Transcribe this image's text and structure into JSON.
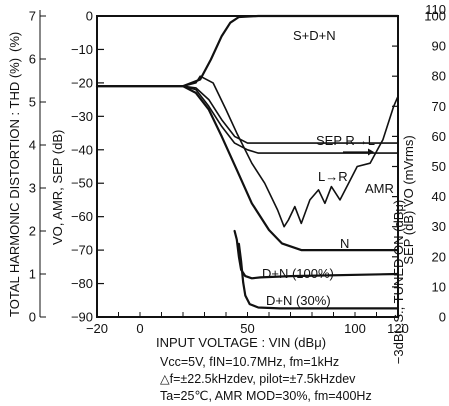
{
  "chart_data": {
    "type": "line",
    "xlabel": "INPUT VOLTAGE : VIN (dBμ)",
    "xlim": [
      -20,
      120
    ],
    "x_ticks": [
      "−20",
      "0",
      "50",
      "100",
      "120"
    ],
    "x_tick_values": [
      -20,
      0,
      50,
      100,
      120
    ],
    "ylabel_left_outer": "TOTAL HARMONIC DISTORTION : THD (%)",
    "ylim_left_outer": [
      0,
      7
    ],
    "y_ticks_left_outer": [
      "0",
      "1",
      "2",
      "3",
      "4",
      "5",
      "6",
      "7"
    ],
    "ylabel_left_inner": "VO, AMR, SEP (dB)",
    "ylim_left_inner": [
      -90,
      0
    ],
    "y_ticks_left_inner": [
      "0",
      "−10",
      "−20",
      "−30",
      "−40",
      "−50",
      "−60",
      "−70",
      "−80",
      "−90"
    ],
    "ylabel_right_inner": "SEP (dB) VO (mVrms)",
    "ylim_right_inner": [
      0,
      100
    ],
    "y_ticks_right_inner": [
      "0",
      "10",
      "20",
      "30",
      "40",
      "50",
      "60",
      "70",
      "80",
      "90",
      "100"
    ],
    "ylabel_right_outer": "−3dBL.S., TUNED ON (dBμ)",
    "ylim_right_outer": [
      0,
      110
    ],
    "y_tick_right_outer_top": "110",
    "grid": false,
    "series": [
      {
        "name": "S+D+N",
        "axis": "dB",
        "color": "#111111",
        "points": [
          [
            -20,
            -21
          ],
          [
            20,
            -21
          ],
          [
            28,
            -19
          ],
          [
            33,
            -13
          ],
          [
            38,
            -6
          ],
          [
            42,
            -2
          ],
          [
            46,
            -0.3
          ],
          [
            55,
            0
          ],
          [
            120,
            0
          ]
        ]
      },
      {
        "name": "N",
        "axis": "dB",
        "color": "#111111",
        "points": [
          [
            -20,
            -21
          ],
          [
            20,
            -21
          ],
          [
            26,
            -23
          ],
          [
            32,
            -28
          ],
          [
            38,
            -36
          ],
          [
            45,
            -46
          ],
          [
            52,
            -56
          ],
          [
            60,
            -64
          ],
          [
            66,
            -68
          ],
          [
            75,
            -70
          ],
          [
            120,
            -70
          ]
        ]
      },
      {
        "name": "AMR",
        "axis": "dB",
        "color": "#111111",
        "points": [
          [
            -20,
            -21
          ],
          [
            20,
            -21
          ],
          [
            26,
            -20
          ],
          [
            28,
            -18
          ],
          [
            34,
            -20
          ],
          [
            40,
            -28
          ],
          [
            45,
            -35
          ],
          [
            52,
            -44
          ],
          [
            58,
            -50
          ],
          [
            64,
            -58
          ],
          [
            67,
            -63
          ],
          [
            69,
            -61
          ],
          [
            72,
            -57
          ],
          [
            75,
            -62
          ],
          [
            79,
            -55
          ],
          [
            83,
            -52
          ],
          [
            86,
            -56
          ],
          [
            89,
            -51
          ],
          [
            93,
            -55
          ],
          [
            97,
            -50
          ],
          [
            101,
            -45
          ],
          [
            107,
            -44
          ],
          [
            113,
            -37
          ],
          [
            118,
            -27
          ],
          [
            120,
            -24
          ]
        ]
      },
      {
        "name": "SEP R→L",
        "axis": "dB",
        "color": "#111111",
        "points": [
          [
            -20,
            -21
          ],
          [
            20,
            -21
          ],
          [
            26,
            -21.5
          ],
          [
            32,
            -25
          ],
          [
            38,
            -31
          ],
          [
            44,
            -36
          ],
          [
            50,
            -38
          ],
          [
            55,
            -38
          ],
          [
            120,
            -38
          ]
        ]
      },
      {
        "name": "SEP L→R",
        "axis": "dB",
        "color": "#111111",
        "points": [
          [
            -20,
            -21
          ],
          [
            20,
            -21
          ],
          [
            26,
            -22
          ],
          [
            32,
            -27
          ],
          [
            38,
            -33
          ],
          [
            44,
            -38
          ],
          [
            50,
            -40
          ],
          [
            55,
            -41
          ],
          [
            120,
            -41
          ]
        ]
      },
      {
        "name": "D+N (100%)",
        "axis": "thd",
        "color": "#111111",
        "points": [
          [
            44,
            2
          ],
          [
            45,
            1.8
          ],
          [
            46,
            1.4
          ],
          [
            47,
            1.1
          ],
          [
            49,
            0.95
          ],
          [
            52,
            0.9
          ],
          [
            56,
            0.92
          ],
          [
            70,
            0.95
          ],
          [
            120,
            1.0
          ]
        ]
      },
      {
        "name": "D+N (30%)",
        "axis": "thd",
        "color": "#111111",
        "points": [
          [
            46,
            1.7
          ],
          [
            47,
            1.3
          ],
          [
            48,
            0.8
          ],
          [
            49,
            0.5
          ],
          [
            51,
            0.3
          ],
          [
            55,
            0.22
          ],
          [
            65,
            0.2
          ],
          [
            120,
            0.2
          ]
        ]
      }
    ],
    "annotations": {
      "sdn": "S+D+N",
      "sep_rl": "SEP R→L",
      "sep_lr": "L→R",
      "amr": "AMR",
      "n": "N",
      "dn100": "D+N (100%)",
      "dn30": "D+N (30%)"
    },
    "conditions": [
      "Vcc=5V, fIN=10.7MHz, fm=1kHz",
      "△f=±22.5kHzdev, pilot=±7.5kHzdev",
      "Ta=25℃, AMR MOD=30%, fm=400Hz"
    ],
    "extra_labels": {
      "pct_unit": "(%)"
    }
  }
}
